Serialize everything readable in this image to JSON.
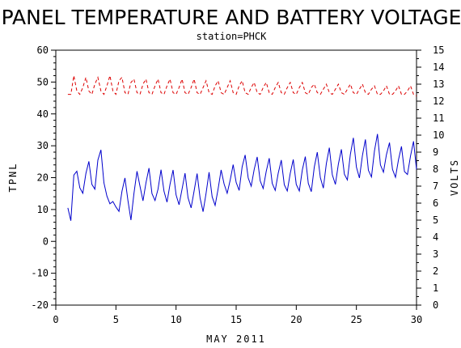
{
  "chart_data": {
    "type": "line",
    "title": "PANEL TEMPERATURE AND BATTERY VOLTAGE",
    "subtitle": "station=PHCK",
    "xlabel": "MAY 2011",
    "ylabel_left": "TPNL",
    "ylabel_right": "VOLTS",
    "xlim": [
      0,
      30
    ],
    "ylim_left": [
      -20,
      60
    ],
    "ylim_right": [
      0,
      15
    ],
    "x_ticks": [
      "0",
      "5",
      "10",
      "15",
      "20",
      "25",
      "30"
    ],
    "y_ticks_left": [
      "-20",
      "-10",
      "0",
      "10",
      "20",
      "30",
      "40",
      "50",
      "60"
    ],
    "y_ticks_right": [
      "0",
      "1",
      "2",
      "3",
      "4",
      "5",
      "6",
      "7",
      "8",
      "9",
      "10",
      "11",
      "12",
      "13",
      "14",
      "15"
    ],
    "colors": {
      "temperature": "#0000cc",
      "voltage": "#dd0000"
    },
    "series": [
      {
        "axis": "left",
        "x": [
          1.0,
          1.25,
          1.5,
          1.75,
          2.0,
          2.25,
          2.5,
          2.75,
          3.0,
          3.25,
          3.5,
          3.75,
          4.0,
          4.25,
          4.5,
          4.75,
          5.0,
          5.25,
          5.5,
          5.75,
          6.0,
          6.25,
          6.5,
          6.75,
          7.0,
          7.25,
          7.5,
          7.75,
          8.0,
          8.25,
          8.5,
          8.75,
          9.0,
          9.25,
          9.5,
          9.75,
          10.0,
          10.25,
          10.5,
          10.75,
          11.0,
          11.25,
          11.5,
          11.75,
          12.0,
          12.25,
          12.5,
          12.75,
          13.0,
          13.25,
          13.5,
          13.75,
          14.0,
          14.25,
          14.5,
          14.75,
          15.0,
          15.25,
          15.5,
          15.75,
          16.0,
          16.25,
          16.5,
          16.75,
          17.0,
          17.25,
          17.5,
          17.75,
          18.0,
          18.25,
          18.5,
          18.75,
          19.0,
          19.25,
          19.5,
          19.75,
          20.0,
          20.25,
          20.5,
          20.75,
          21.0,
          21.25,
          21.5,
          21.75,
          22.0,
          22.25,
          22.5,
          22.75,
          23.0,
          23.25,
          23.5,
          23.75,
          24.0,
          24.25,
          24.5,
          24.75,
          25.0,
          25.25,
          25.5,
          25.75,
          26.0,
          26.25,
          26.5,
          26.75,
          27.0,
          27.25,
          27.5,
          27.75,
          28.0,
          28.25,
          28.5,
          28.75,
          29.0,
          29.25,
          29.5,
          29.75,
          30.0
        ],
        "values": [
          10.5,
          6.5,
          20.8,
          22.0,
          16.8,
          15.1,
          21.3,
          25.1,
          17.9,
          16.4,
          25.5,
          28.7,
          18.4,
          14.2,
          11.8,
          12.5,
          10.8,
          9.4,
          15.7,
          19.9,
          12.8,
          6.7,
          15.0,
          22.0,
          17.3,
          12.7,
          18.4,
          23.0,
          15.0,
          12.8,
          16.4,
          22.5,
          15.7,
          12.3,
          17.9,
          22.4,
          14.6,
          11.5,
          16.4,
          21.4,
          13.7,
          10.5,
          15.8,
          21.3,
          13.6,
          9.3,
          15.1,
          21.7,
          14.0,
          11.3,
          16.5,
          22.4,
          18.0,
          15.1,
          19.2,
          24.1,
          18.5,
          16.0,
          23.4,
          27.1,
          19.9,
          17.3,
          22.6,
          26.5,
          19.0,
          16.6,
          22.0,
          26.1,
          18.2,
          16.0,
          21.4,
          25.5,
          17.8,
          15.8,
          21.4,
          25.7,
          17.9,
          15.8,
          22.4,
          26.6,
          18.2,
          15.6,
          23.3,
          28.0,
          20.0,
          16.7,
          24.4,
          29.4,
          20.9,
          17.9,
          24.3,
          28.9,
          21.1,
          19.3,
          27.3,
          32.5,
          23.3,
          19.9,
          26.9,
          32.0,
          22.3,
          20.2,
          28.4,
          33.7,
          24.0,
          21.7,
          27.2,
          31.0,
          22.6,
          20.1,
          25.6,
          29.8,
          21.9,
          21.0,
          26.8,
          31.4,
          22.6
        ]
      },
      {
        "axis": "right",
        "x": [
          1.0,
          1.25,
          1.5,
          1.75,
          2.0,
          2.25,
          2.5,
          2.75,
          3.0,
          3.25,
          3.5,
          3.75,
          4.0,
          4.25,
          4.5,
          4.75,
          5.0,
          5.25,
          5.5,
          5.75,
          6.0,
          6.25,
          6.5,
          6.75,
          7.0,
          7.25,
          7.5,
          7.75,
          8.0,
          8.25,
          8.5,
          8.75,
          9.0,
          9.25,
          9.5,
          9.75,
          10.0,
          10.25,
          10.5,
          10.75,
          11.0,
          11.25,
          11.5,
          11.75,
          12.0,
          12.25,
          12.5,
          12.75,
          13.0,
          13.25,
          13.5,
          13.75,
          14.0,
          14.25,
          14.5,
          14.75,
          15.0,
          15.25,
          15.5,
          15.75,
          16.0,
          16.25,
          16.5,
          16.75,
          17.0,
          17.25,
          17.5,
          17.75,
          18.0,
          18.25,
          18.5,
          18.75,
          19.0,
          19.25,
          19.5,
          19.75,
          20.0,
          20.25,
          20.5,
          20.75,
          21.0,
          21.25,
          21.5,
          21.75,
          22.0,
          22.25,
          22.5,
          22.75,
          23.0,
          23.25,
          23.5,
          23.75,
          24.0,
          24.25,
          24.5,
          24.75,
          25.0,
          25.25,
          25.5,
          25.75,
          26.0,
          26.25,
          26.5,
          26.75,
          27.0,
          27.25,
          27.5,
          27.75,
          28.0,
          28.25,
          28.5,
          28.75,
          29.0,
          29.25,
          29.5,
          29.75,
          30.0
        ],
        "values": [
          12.4,
          12.4,
          13.5,
          12.6,
          12.4,
          12.8,
          13.4,
          12.6,
          12.4,
          13.0,
          13.4,
          12.6,
          12.4,
          12.9,
          13.5,
          12.6,
          12.4,
          13.2,
          13.4,
          12.5,
          12.4,
          13.1,
          13.3,
          12.5,
          12.4,
          13.0,
          13.3,
          12.5,
          12.4,
          12.9,
          13.3,
          12.5,
          12.4,
          12.9,
          13.3,
          12.5,
          12.4,
          12.8,
          13.3,
          12.5,
          12.4,
          12.8,
          13.3,
          12.5,
          12.4,
          12.8,
          13.2,
          12.5,
          12.4,
          12.9,
          13.2,
          12.5,
          12.4,
          12.8,
          13.2,
          12.5,
          12.4,
          12.9,
          13.2,
          12.5,
          12.4,
          12.8,
          13.1,
          12.5,
          12.4,
          12.8,
          13.1,
          12.5,
          12.4,
          12.8,
          13.1,
          12.5,
          12.4,
          12.8,
          13.1,
          12.5,
          12.4,
          12.8,
          13.1,
          12.5,
          12.4,
          12.8,
          13.0,
          12.5,
          12.4,
          12.7,
          13.0,
          12.5,
          12.4,
          12.7,
          13.0,
          12.5,
          12.4,
          12.7,
          13.0,
          12.5,
          12.4,
          12.7,
          13.0,
          12.5,
          12.4,
          12.7,
          12.9,
          12.4,
          12.4,
          12.6,
          12.9,
          12.4,
          12.4,
          12.6,
          12.9,
          12.4,
          12.4,
          12.6,
          12.9,
          12.4,
          12.3
        ]
      }
    ]
  }
}
